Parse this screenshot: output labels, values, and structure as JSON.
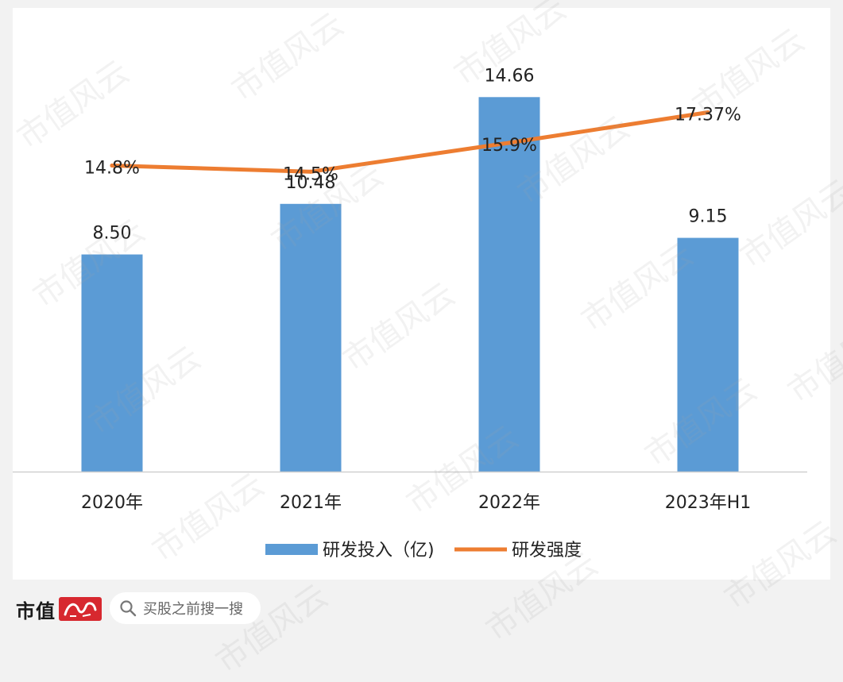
{
  "chart_data": {
    "type": "bar",
    "categories": [
      "2020年",
      "2021年",
      "2022年",
      "2023年H1"
    ],
    "series": [
      {
        "name": "研发投入（亿)",
        "type": "bar",
        "values": [
          8.5,
          10.48,
          14.66,
          9.15
        ],
        "labels": [
          "8.50",
          "10.48",
          "14.66",
          "9.15"
        ],
        "color": "#5b9bd5",
        "axis": "left"
      },
      {
        "name": "研发强度",
        "type": "line",
        "values": [
          14.8,
          14.5,
          15.9,
          17.37
        ],
        "labels": [
          "14.8%",
          "14.5%",
          "15.9%",
          "17.37%"
        ],
        "color": "#ed7d31",
        "axis": "right"
      }
    ],
    "title": "",
    "xlabel": "",
    "ylabel": "",
    "ylim": [
      0,
      17
    ],
    "y2lim": [
      0,
      21
    ],
    "grid": false,
    "legend": "bottom"
  },
  "footer": {
    "brand_name": "市值",
    "brand_seal_text": "风云",
    "search_text": "买股之前搜一搜",
    "watermark_text": "市值风云"
  }
}
